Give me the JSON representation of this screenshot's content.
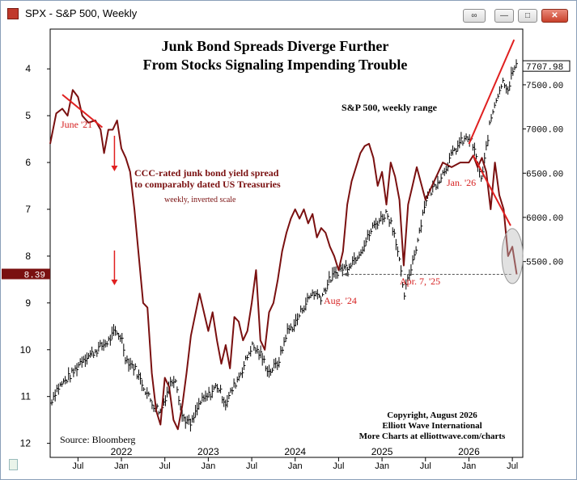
{
  "window": {
    "title": "SPX - S&P 500, Weekly"
  },
  "chart_data": {
    "type": "line",
    "title": "Junk Bond Spreads Diverge Further",
    "subtitle": "From Stocks Signaling Impending Trouble",
    "source": "Source: Bloomberg",
    "copyright_lines": [
      "Copyright, August 2026",
      "Elliott Wave International",
      "More Charts at elliottwave.com/charts"
    ],
    "x_tick_labels": [
      "Jul",
      "Jan",
      "Jul",
      "Jan",
      "Jul",
      "Jan",
      "Jul",
      "Jan",
      "Jul",
      "Jan",
      "Jul"
    ],
    "x_tick_dates": [
      2021.5,
      2022.0,
      2022.5,
      2023.0,
      2023.5,
      2024.0,
      2024.5,
      2025.0,
      2025.5,
      2026.0,
      2026.5
    ],
    "x_year_labels": [
      "2022",
      "2023",
      "2024",
      "2025",
      "2026"
    ],
    "x_year_dates": [
      2022.0,
      2023.0,
      2024.0,
      2025.0,
      2026.0
    ],
    "xlim": [
      2021.18,
      2026.62
    ],
    "right_axis": {
      "label": "S&P 500, weekly range",
      "ylim": [
        3285,
        8130
      ],
      "ticks": [
        5500,
        6000,
        6500,
        7000,
        7500
      ],
      "tick_labels": [
        "5500.00",
        "6000.00",
        "6500.00",
        "7000.00",
        "7500.00"
      ],
      "last_value_label": "7707.98",
      "last_value": 7707.98
    },
    "left_axis": {
      "label": "weekly, inverted scale",
      "inverted": true,
      "ylim": [
        3.15,
        12.3
      ],
      "ticks": [
        4,
        5,
        6,
        7,
        8,
        9,
        10,
        11,
        12
      ],
      "tick_labels": [
        "4",
        "5",
        "6",
        "7",
        "8",
        "9",
        "10",
        "11",
        "12"
      ],
      "last_value_label": "8.39",
      "last_value": 8.39
    },
    "series": [
      {
        "name": "CCC-rated junk bond yield spread",
        "name_line2": "to comparably dated US Treasuries",
        "axis": "left",
        "color": "#7a1010",
        "x": [
          2021.18,
          2021.25,
          2021.32,
          2021.38,
          2021.44,
          2021.5,
          2021.55,
          2021.62,
          2021.7,
          2021.76,
          2021.8,
          2021.85,
          2021.9,
          2021.95,
          2022.0,
          2022.05,
          2022.1,
          2022.15,
          2022.2,
          2022.25,
          2022.3,
          2022.35,
          2022.4,
          2022.45,
          2022.5,
          2022.55,
          2022.6,
          2022.65,
          2022.7,
          2022.75,
          2022.8,
          2022.9,
          2023.0,
          2023.05,
          2023.1,
          2023.15,
          2023.2,
          2023.25,
          2023.3,
          2023.35,
          2023.4,
          2023.45,
          2023.5,
          2023.55,
          2023.6,
          2023.65,
          2023.7,
          2023.75,
          2023.8,
          2023.85,
          2023.9,
          2023.95,
          2024.0,
          2024.05,
          2024.1,
          2024.15,
          2024.2,
          2024.25,
          2024.3,
          2024.35,
          2024.4,
          2024.45,
          2024.5,
          2024.55,
          2024.6,
          2024.65,
          2024.7,
          2024.75,
          2024.8,
          2024.85,
          2024.9,
          2024.95,
          2025.0,
          2025.05,
          2025.1,
          2025.15,
          2025.2,
          2025.25,
          2025.3,
          2025.35,
          2025.4,
          2025.5,
          2025.6,
          2025.7,
          2025.8,
          2025.9,
          2026.0,
          2026.05,
          2026.1,
          2026.15,
          2026.2,
          2026.25,
          2026.3,
          2026.35,
          2026.4,
          2026.45,
          2026.5,
          2026.55
        ],
        "y": [
          5.6,
          4.95,
          4.85,
          5.0,
          4.45,
          4.6,
          5.0,
          5.15,
          5.1,
          5.3,
          5.8,
          5.3,
          5.3,
          5.1,
          5.7,
          5.9,
          6.2,
          7.0,
          8.0,
          9.0,
          9.1,
          10.5,
          11.3,
          11.6,
          10.6,
          10.8,
          11.5,
          11.7,
          11.2,
          10.5,
          9.7,
          8.8,
          9.6,
          9.2,
          9.8,
          10.3,
          9.9,
          10.4,
          9.3,
          9.4,
          9.8,
          9.6,
          9.0,
          8.3,
          9.8,
          10.0,
          9.2,
          9.0,
          8.5,
          7.9,
          7.5,
          7.2,
          7.0,
          7.2,
          7.0,
          7.3,
          7.1,
          7.6,
          7.4,
          7.5,
          7.8,
          8.0,
          8.3,
          7.9,
          6.9,
          6.4,
          6.1,
          5.8,
          5.65,
          5.6,
          5.9,
          6.5,
          6.2,
          6.9,
          6.0,
          6.3,
          6.8,
          8.2,
          6.9,
          6.5,
          6.1,
          6.8,
          6.4,
          6.0,
          6.1,
          6.0,
          6.0,
          5.85,
          6.1,
          5.9,
          6.2,
          7.0,
          6.0,
          6.7,
          7.0,
          8.0,
          7.8,
          8.39
        ]
      },
      {
        "name": "S&P 500",
        "axis": "right",
        "color": "#000000",
        "x": [
          2021.18,
          2021.25,
          2021.35,
          2021.45,
          2021.55,
          2021.65,
          2021.75,
          2021.85,
          2021.92,
          2022.0,
          2022.05,
          2022.15,
          2022.25,
          2022.35,
          2022.45,
          2022.55,
          2022.62,
          2022.7,
          2022.8,
          2022.9,
          2023.0,
          2023.1,
          2023.2,
          2023.3,
          2023.4,
          2023.5,
          2023.6,
          2023.7,
          2023.8,
          2023.85,
          2023.9,
          2024.0,
          2024.1,
          2024.2,
          2024.3,
          2024.4,
          2024.5,
          2024.6,
          2024.7,
          2024.8,
          2024.9,
          2025.0,
          2025.05,
          2025.1,
          2025.15,
          2025.2,
          2025.25,
          2025.3,
          2025.4,
          2025.5,
          2025.6,
          2025.7,
          2025.8,
          2025.9,
          2026.0,
          2026.05,
          2026.1,
          2026.15,
          2026.2,
          2026.25,
          2026.3,
          2026.35,
          2026.4,
          2026.45,
          2026.5,
          2026.55
        ],
        "y": [
          3900,
          4050,
          4150,
          4250,
          4400,
          4450,
          4530,
          4600,
          4700,
          4650,
          4400,
          4300,
          4100,
          3900,
          3800,
          4100,
          4200,
          3750,
          3650,
          3900,
          3980,
          4100,
          3900,
          4100,
          4300,
          4550,
          4450,
          4250,
          4350,
          4500,
          4700,
          4800,
          5000,
          5150,
          5100,
          5300,
          5400,
          5450,
          5550,
          5700,
          5900,
          6000,
          6050,
          5950,
          5800,
          5500,
          5100,
          5300,
          5700,
          6200,
          6350,
          6500,
          6700,
          6850,
          6900,
          6800,
          6600,
          6400,
          6800,
          7100,
          7300,
          7450,
          7550,
          7450,
          7650,
          7707.98
        ]
      }
    ],
    "annotations": [
      {
        "text": "S&P 500, weekly range",
        "color": "#000000"
      },
      {
        "text": "CCC-rated junk bond yield spread",
        "color": "#7a1010"
      },
      {
        "text": "to comparably dated US Treasuries",
        "color": "#7a1010"
      },
      {
        "text": "weekly, inverted scale",
        "color": "#7a1010"
      },
      {
        "text": "June '21",
        "color": "#d62020"
      },
      {
        "text": "Aug. '24",
        "color": "#d62020"
      },
      {
        "text": "Apr. 7, '25",
        "color": "#d62020"
      },
      {
        "text": "Jan. '26",
        "color": "#d62020"
      }
    ],
    "grid": false,
    "colors": {
      "spread": "#7a1010",
      "spx": "#000000",
      "accent": "#e02020",
      "axis_badge": "#7a1010"
    }
  }
}
